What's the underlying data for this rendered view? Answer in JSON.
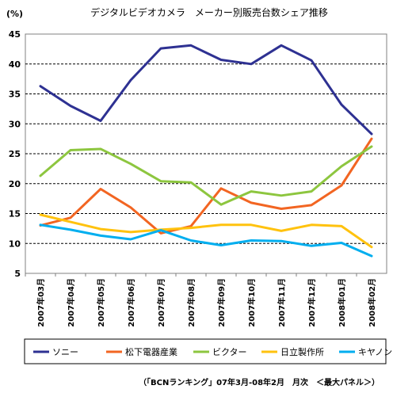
{
  "chart_data": {
    "type": "line",
    "title": "デジタルビデオカメラ　メーカー別販売台数シェア推移",
    "unit_label": "(%)",
    "footer": "（「BCNランキング」07年3月-08年2月　月次　＜最大パネル＞）",
    "ylim": [
      5,
      45
    ],
    "yticks": [
      "5",
      "10",
      "15",
      "20",
      "25",
      "30",
      "35",
      "40",
      "45"
    ],
    "grid": true,
    "legend_position": "bottom",
    "categories": [
      "2007年03月",
      "2007年04月",
      "2007年05月",
      "2007年06月",
      "2007年07月",
      "2007年08月",
      "2007年09月",
      "2007年10月",
      "2007年11月",
      "2007年12月",
      "2008年01月",
      "2008年02月"
    ],
    "series": [
      {
        "name": "ソニー",
        "color": "#2e3192",
        "values": [
          36.3,
          33.0,
          30.5,
          37.3,
          42.6,
          43.1,
          40.7,
          40.0,
          43.1,
          40.6,
          33.2,
          28.3
        ]
      },
      {
        "name": "松下電器産業",
        "color": "#f26522",
        "values": [
          13.0,
          14.3,
          19.1,
          16.0,
          11.7,
          12.9,
          19.2,
          16.8,
          15.8,
          16.4,
          19.7,
          27.5
        ]
      },
      {
        "name": "ビクター",
        "color": "#8dc63f",
        "values": [
          21.3,
          25.6,
          25.8,
          23.3,
          20.4,
          20.2,
          16.5,
          18.7,
          18.0,
          18.7,
          22.9,
          26.2
        ]
      },
      {
        "name": "日立製作所",
        "color": "#ffc20e",
        "values": [
          14.8,
          13.6,
          12.4,
          11.9,
          12.3,
          12.6,
          13.1,
          13.1,
          12.1,
          13.1,
          12.9,
          9.4
        ]
      },
      {
        "name": "キヤノン",
        "color": "#00aeef",
        "values": [
          13.1,
          12.3,
          11.3,
          10.7,
          12.2,
          10.5,
          9.7,
          10.5,
          10.4,
          9.6,
          10.1,
          7.9
        ]
      }
    ]
  }
}
